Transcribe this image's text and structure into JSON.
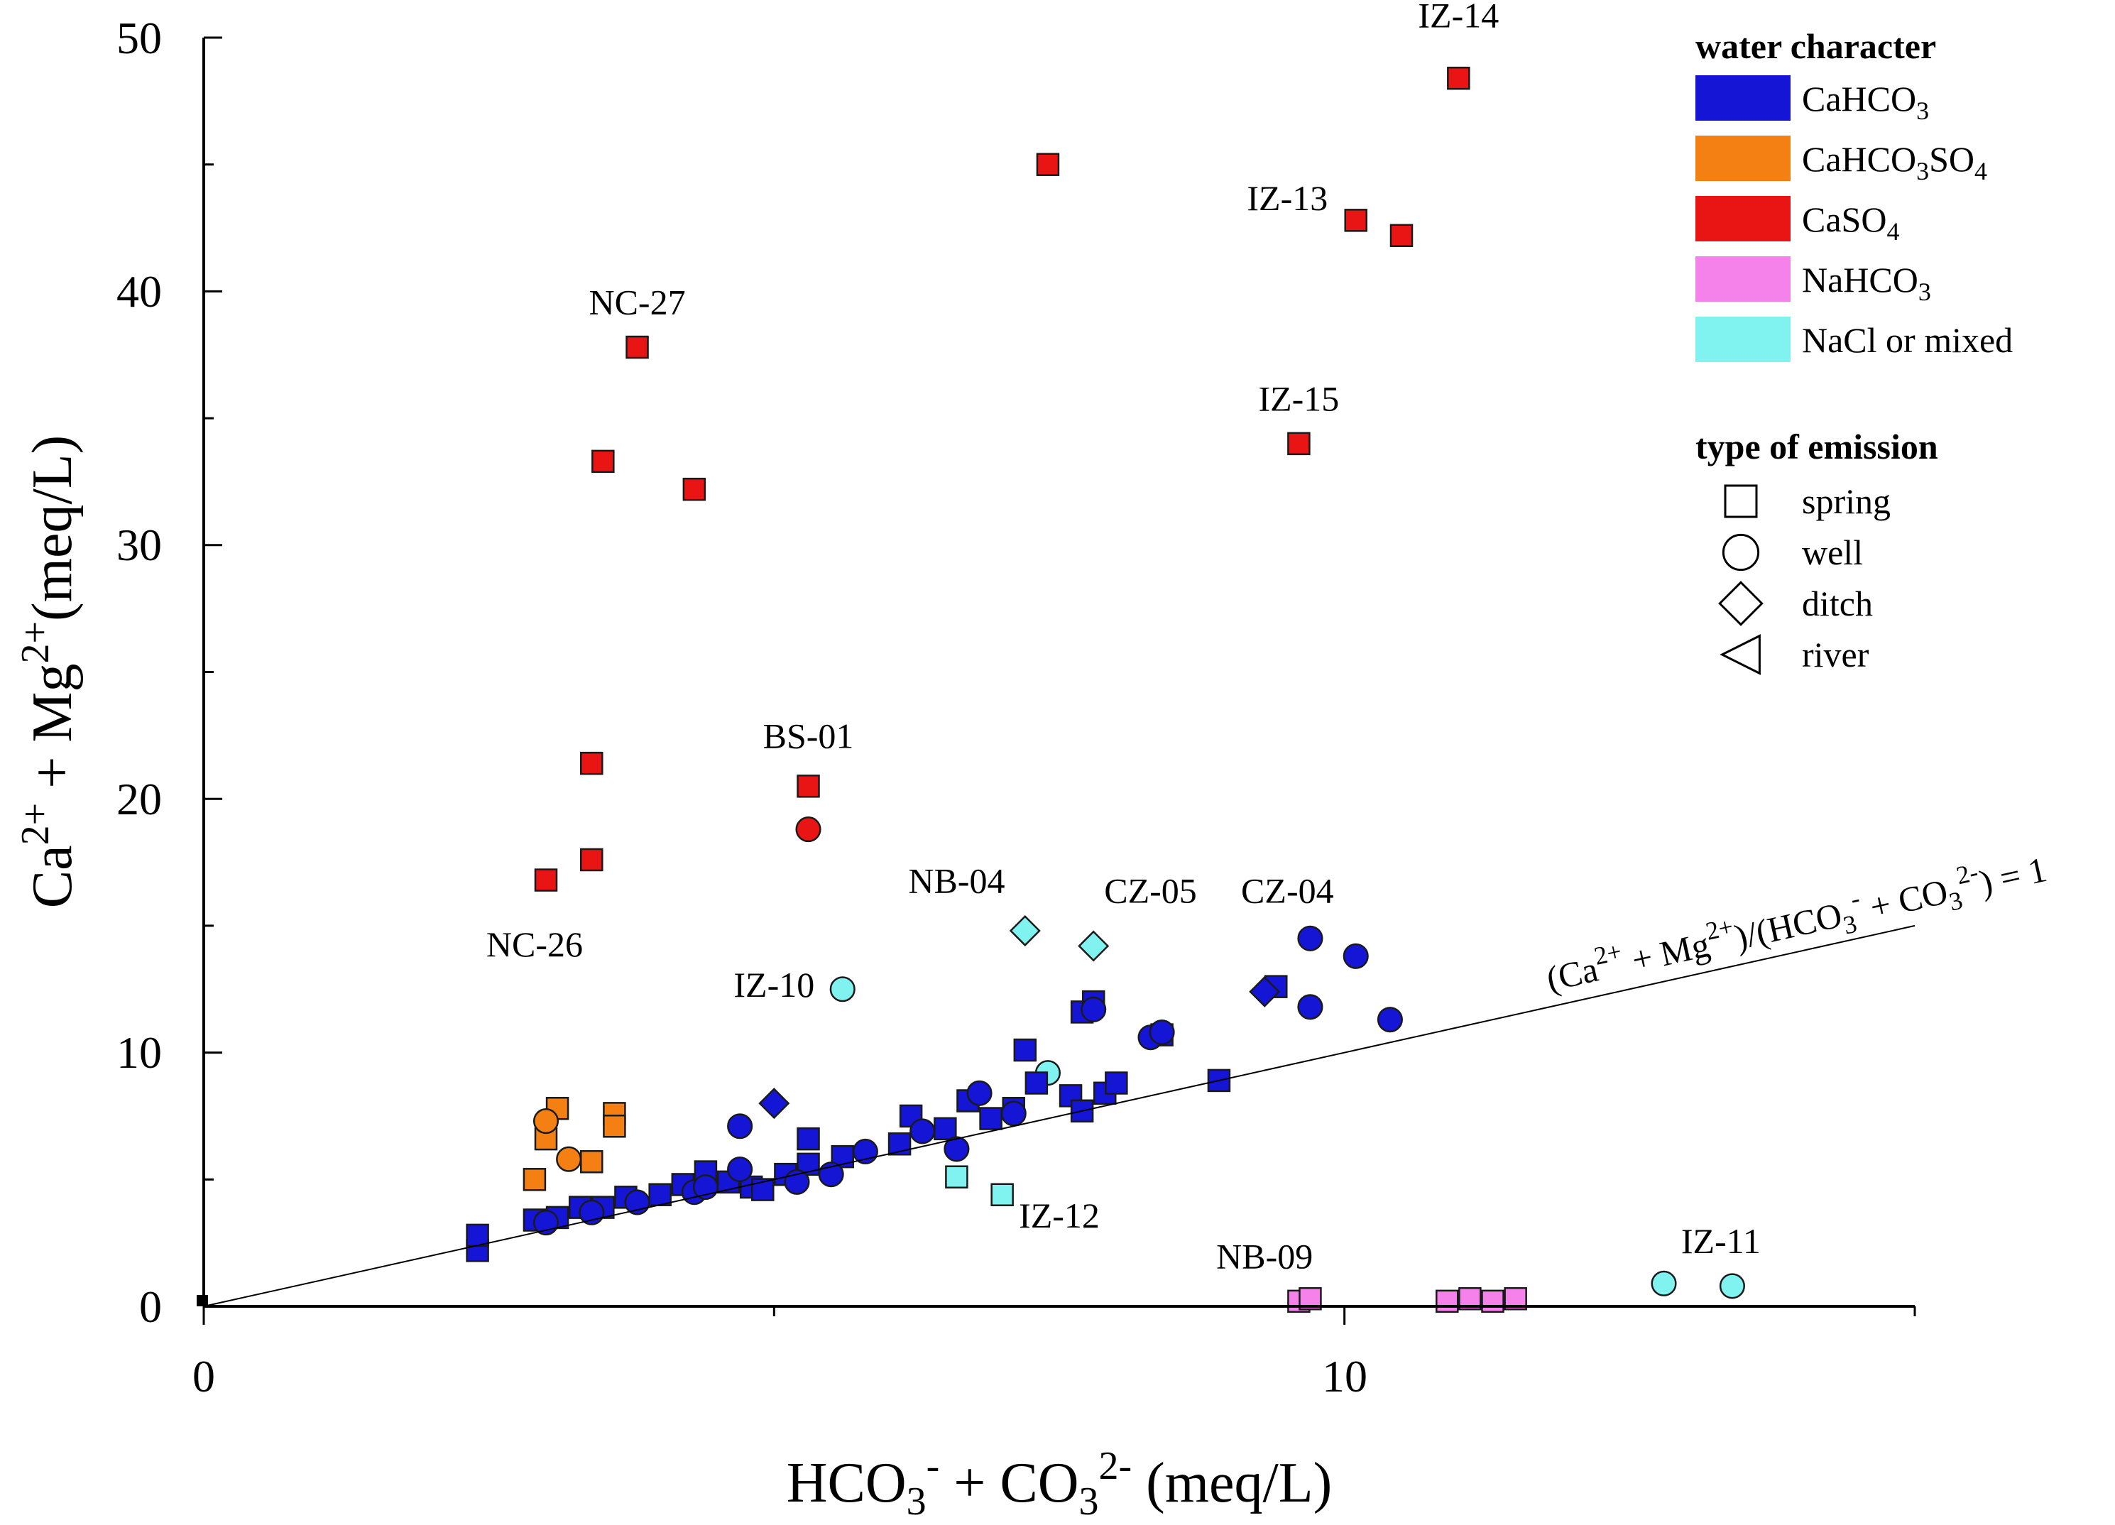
{
  "chart_data": {
    "type": "scatter",
    "title": "",
    "xlabel": "HCO3- + CO32- (meq/L)",
    "ylabel": "Ca2+ + Mg2+(meq/L)",
    "xlim": [
      0,
      15
    ],
    "ylim": [
      0,
      50
    ],
    "x_tick_labels": [
      "0",
      "10"
    ],
    "y_tick_labels": [
      "0",
      "10",
      "20",
      "30",
      "40",
      "50"
    ],
    "reference_line": {
      "label": "(Ca2+ + Mg2+)/(HCO3- + CO32-) = 1",
      "slope": 1
    },
    "colors": {
      "CaHCO3": "#1515d6",
      "CaHCO3SO4": "#f47f12",
      "CaSO4": "#e91515",
      "NaHCO3": "#f582ea",
      "NaCl or mixed": "#80f2f0"
    },
    "legend": {
      "water_title": "water character",
      "water_items": [
        {
          "key": "CaHCO3",
          "label": "CaHCO",
          "sub": "3",
          "label2": "",
          "sub2": ""
        },
        {
          "key": "CaHCO3SO4",
          "label": "CaHCO",
          "sub": "3",
          "label2": "SO",
          "sub2": "4"
        },
        {
          "key": "CaSO4",
          "label": "CaSO",
          "sub": "4",
          "label2": "",
          "sub2": ""
        },
        {
          "key": "NaHCO3",
          "label": "NaHCO",
          "sub": "3",
          "label2": "",
          "sub2": ""
        },
        {
          "key": "NaCl or mixed",
          "label": "NaCl or mixed",
          "sub": "",
          "label2": "",
          "sub2": ""
        }
      ],
      "emission_title": "type of emission",
      "emission_items": [
        {
          "shape": "square",
          "label": "spring"
        },
        {
          "shape": "circle",
          "label": "well"
        },
        {
          "shape": "diamond",
          "label": "ditch"
        },
        {
          "shape": "triangle",
          "label": "river"
        }
      ]
    },
    "annotations": [
      {
        "text": "IZ-14",
        "x": 11.0,
        "y": 50.4
      },
      {
        "text": "IZ-13",
        "x": 9.5,
        "y": 43.2
      },
      {
        "text": "IZ-15",
        "x": 9.6,
        "y": 35.3
      },
      {
        "text": "NC-27",
        "x": 3.8,
        "y": 39.1
      },
      {
        "text": "BS-01",
        "x": 5.3,
        "y": 22.0
      },
      {
        "text": "NC-26",
        "x": 2.9,
        "y": 13.8
      },
      {
        "text": "NB-04",
        "x": 6.6,
        "y": 16.3
      },
      {
        "text": "CZ-05",
        "x": 8.3,
        "y": 15.9
      },
      {
        "text": "CZ-04",
        "x": 9.5,
        "y": 15.9
      },
      {
        "text": "IZ-10",
        "x": 5.0,
        "y": 12.2
      },
      {
        "text": "IZ-12",
        "x": 7.5,
        "y": 3.1
      },
      {
        "text": "NB-09",
        "x": 9.3,
        "y": 1.5
      },
      {
        "text": "IZ-11",
        "x": 13.3,
        "y": 2.1
      }
    ],
    "series": [
      {
        "name": "CaSO4 spring",
        "group": "CaSO4",
        "shape": "square",
        "points": [
          [
            11.0,
            48.4
          ],
          [
            7.4,
            45.0
          ],
          [
            10.1,
            42.8
          ],
          [
            10.5,
            42.2
          ],
          [
            3.8,
            37.8
          ],
          [
            3.5,
            33.3
          ],
          [
            4.3,
            32.2
          ],
          [
            9.6,
            34.0
          ],
          [
            3.4,
            21.4
          ],
          [
            5.3,
            20.5
          ],
          [
            3.4,
            17.6
          ],
          [
            3.0,
            16.8
          ]
        ]
      },
      {
        "name": "CaSO4 well",
        "group": "CaSO4",
        "shape": "circle",
        "points": [
          [
            5.3,
            18.8
          ]
        ]
      },
      {
        "name": "CaHCO3SO4 spring",
        "group": "CaHCO3SO4",
        "shape": "square",
        "points": [
          [
            3.1,
            7.8
          ],
          [
            3.6,
            7.6
          ],
          [
            3.6,
            7.1
          ],
          [
            3.0,
            6.6
          ],
          [
            3.4,
            5.7
          ],
          [
            2.9,
            5.0
          ]
        ]
      },
      {
        "name": "CaHCO3SO4 well",
        "group": "CaHCO3SO4",
        "shape": "circle",
        "points": [
          [
            3.0,
            7.3
          ],
          [
            3.2,
            5.8
          ]
        ]
      },
      {
        "name": "NaCl or mixed spring",
        "group": "NaCl or mixed",
        "shape": "square",
        "points": [
          [
            6.6,
            5.1
          ],
          [
            7.0,
            4.4
          ]
        ]
      },
      {
        "name": "NaCl or mixed well",
        "group": "NaCl or mixed",
        "shape": "circle",
        "points": [
          [
            5.6,
            12.5
          ],
          [
            7.4,
            9.2
          ],
          [
            12.8,
            0.9
          ],
          [
            13.4,
            0.8
          ]
        ]
      },
      {
        "name": "NaCl or mixed ditch",
        "group": "NaCl or mixed",
        "shape": "diamond",
        "points": [
          [
            7.2,
            14.8
          ],
          [
            7.8,
            14.2
          ]
        ]
      },
      {
        "name": "NaHCO3 spring",
        "group": "NaHCO3",
        "shape": "square",
        "points": [
          [
            9.6,
            0.2
          ],
          [
            9.7,
            0.3
          ],
          [
            10.9,
            0.2
          ],
          [
            11.1,
            0.3
          ],
          [
            11.3,
            0.2
          ],
          [
            11.5,
            0.3
          ]
        ]
      },
      {
        "name": "CaHCO3 spring",
        "group": "CaHCO3",
        "shape": "square",
        "points": [
          [
            2.4,
            2.2
          ],
          [
            2.4,
            2.8
          ],
          [
            2.9,
            3.4
          ],
          [
            3.1,
            3.5
          ],
          [
            3.5,
            3.9
          ],
          [
            3.7,
            4.3
          ],
          [
            4.0,
            4.4
          ],
          [
            4.2,
            4.8
          ],
          [
            4.4,
            5.3
          ],
          [
            4.6,
            4.9
          ],
          [
            4.8,
            4.7
          ],
          [
            5.1,
            5.2
          ],
          [
            5.3,
            6.6
          ],
          [
            5.3,
            5.6
          ],
          [
            5.6,
            5.9
          ],
          [
            6.1,
            6.4
          ],
          [
            6.2,
            7.5
          ],
          [
            6.5,
            7.0
          ],
          [
            6.7,
            8.1
          ],
          [
            6.9,
            7.4
          ],
          [
            7.1,
            7.8
          ],
          [
            7.2,
            10.1
          ],
          [
            7.3,
            8.8
          ],
          [
            7.6,
            8.3
          ],
          [
            7.7,
            11.6
          ],
          [
            7.8,
            12.0
          ],
          [
            7.9,
            8.4
          ],
          [
            8.0,
            8.8
          ],
          [
            8.4,
            10.7
          ],
          [
            8.9,
            8.9
          ],
          [
            9.4,
            12.6
          ],
          [
            7.7,
            7.7
          ],
          [
            4.9,
            4.6
          ],
          [
            3.3,
            3.9
          ]
        ]
      },
      {
        "name": "CaHCO3 well",
        "group": "CaHCO3",
        "shape": "circle",
        "points": [
          [
            3.0,
            3.3
          ],
          [
            3.4,
            3.7
          ],
          [
            3.8,
            4.1
          ],
          [
            4.3,
            4.5
          ],
          [
            4.4,
            4.7
          ],
          [
            4.7,
            5.4
          ],
          [
            4.7,
            7.1
          ],
          [
            5.2,
            4.9
          ],
          [
            5.5,
            5.2
          ],
          [
            5.8,
            6.1
          ],
          [
            6.3,
            6.9
          ],
          [
            6.6,
            6.2
          ],
          [
            6.8,
            8.4
          ],
          [
            7.1,
            7.6
          ],
          [
            7.8,
            11.7
          ],
          [
            8.3,
            10.6
          ],
          [
            8.4,
            10.8
          ],
          [
            9.7,
            14.5
          ],
          [
            9.7,
            11.8
          ],
          [
            10.1,
            13.8
          ],
          [
            10.4,
            11.3
          ]
        ]
      },
      {
        "name": "CaHCO3 ditch",
        "group": "CaHCO3",
        "shape": "diamond",
        "points": [
          [
            5.0,
            8.0
          ],
          [
            9.3,
            12.4
          ]
        ]
      }
    ]
  }
}
